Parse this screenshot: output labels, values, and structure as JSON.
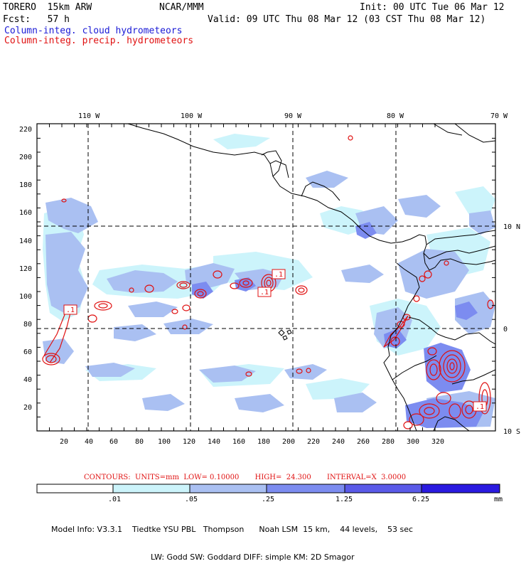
{
  "header": {
    "model": "TORERO  15km ARW",
    "org": "NCAR/MMM",
    "init": "Init: 00 UTC Tue 06 Mar 12",
    "fcst": "Fcst:   57 h",
    "valid": "Valid: 09 UTC Thu 08 Mar 12 (03 CST Thu 08 Mar 12)",
    "field1": "Column-integ. cloud hydrometeors",
    "field2": "Column-integ. precip. hydrometeors"
  },
  "map": {
    "lon_labels": [
      "110 W",
      "100 W",
      "90 W",
      "80 W",
      "70 W"
    ],
    "lat_labels": [
      "10 N",
      "0",
      "10 S"
    ],
    "y_ticks": [
      "220",
      "200",
      "180",
      "160",
      "140",
      "120",
      "100",
      "80",
      "60",
      "40",
      "20"
    ],
    "x_ticks": [
      "20",
      "40",
      "60",
      "80",
      "100",
      "120",
      "140",
      "160",
      "180",
      "200",
      "220",
      "240",
      "260",
      "280",
      "300",
      "320"
    ],
    "contour_label": ".1"
  },
  "legend": {
    "contours_text": "CONTOURS:  UNITS=mm  LOW= 0.10000       HIGH=  24.300       INTERVAL=X  3.0000",
    "bin_labels": [
      ".01",
      ".05",
      ".25",
      "1.25",
      "6.25"
    ],
    "bin_colors": [
      "#ffffff",
      "#ccf4fb",
      "#aac0f2",
      "#7c8cf0",
      "#5a5ae8",
      "#2a1ae0"
    ],
    "units": "mm"
  },
  "footer": {
    "line1": "Model Info: V3.3.1    Tiedtke YSU PBL   Thompson      Noah LSM  15 km,    44 levels,    53 sec",
    "line2": "LW: Godd SW: Goddard DIFF: simple KM: 2D Smagor"
  },
  "colors": {
    "cloud_light": "#ccf4fb",
    "cloud_mid": "#aac0f2",
    "cloud_dark": "#7c8cf0",
    "precip": "#e01010"
  }
}
